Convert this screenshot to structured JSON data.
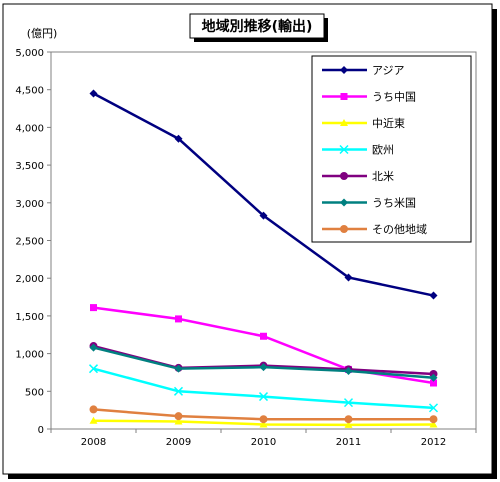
{
  "chart_data": {
    "type": "line",
    "title": "地域別推移(輸出)",
    "unit_label": "(億円)",
    "x": [
      "2008",
      "2009",
      "2010",
      "2011",
      "2012"
    ],
    "ylim": [
      0,
      5000
    ],
    "yticks": [
      "0",
      "500",
      "1,000",
      "1,500",
      "2,000",
      "2,500",
      "3,000",
      "3,500",
      "4,000",
      "4,500",
      "5,000"
    ],
    "grid": false,
    "legend_position": "top-right",
    "series": [
      {
        "name": "アジア",
        "color": "#000080",
        "marker": "diamond",
        "values": [
          4450,
          3850,
          2830,
          2010,
          1770
        ]
      },
      {
        "name": "うち中国",
        "color": "#ff00ff",
        "marker": "square",
        "values": [
          1610,
          1460,
          1230,
          790,
          610
        ]
      },
      {
        "name": "中近東",
        "color": "#ffff00",
        "marker": "triangle",
        "values": [
          110,
          100,
          60,
          55,
          60
        ]
      },
      {
        "name": "欧州",
        "color": "#00ffff",
        "marker": "x",
        "values": [
          800,
          500,
          430,
          350,
          280
        ]
      },
      {
        "name": "北米",
        "color": "#800080",
        "marker": "circle",
        "values": [
          1100,
          810,
          840,
          790,
          730
        ]
      },
      {
        "name": "うち米国",
        "color": "#008080",
        "marker": "diamond",
        "values": [
          1080,
          800,
          820,
          770,
          680
        ]
      },
      {
        "name": "その他地域",
        "color": "#e08040",
        "marker": "circle",
        "values": [
          260,
          170,
          130,
          130,
          130
        ]
      }
    ]
  }
}
